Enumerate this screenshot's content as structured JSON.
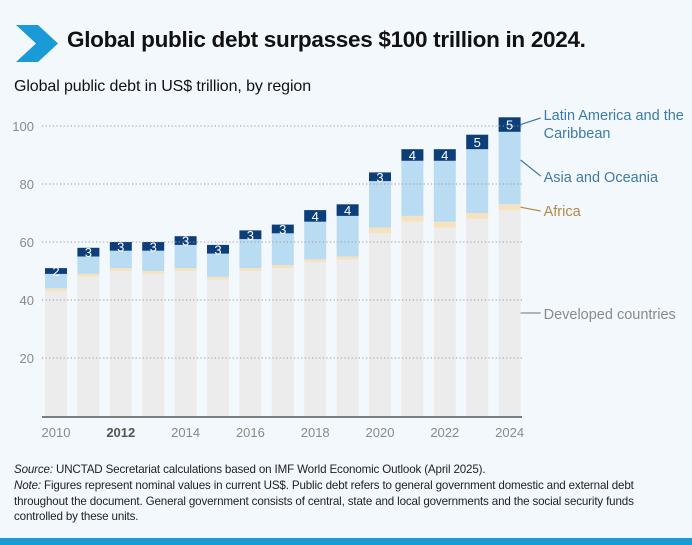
{
  "header": {
    "title": "Global public debt surpasses $100 trillion in 2024.",
    "subtitle": "Global public debt in US$ trillion, by region",
    "accent_color": "#1a9ad6"
  },
  "chart_data": {
    "type": "bar",
    "stacked": true,
    "title": "Global public debt in US$ trillion, by region",
    "xlabel": "",
    "ylabel": "US$ trillion",
    "ylim": [
      0,
      105
    ],
    "yticks": [
      20,
      40,
      60,
      80,
      100
    ],
    "grid": true,
    "legend_position": "right (direct labels)",
    "categories": [
      "2010",
      "2011",
      "2012",
      "2013",
      "2014",
      "2015",
      "2016",
      "2017",
      "2018",
      "2019",
      "2020",
      "2021",
      "2022",
      "2023",
      "2024"
    ],
    "xtick_labels": [
      "2010",
      "2012",
      "2014",
      "2016",
      "2018",
      "2020",
      "2022",
      "2024"
    ],
    "highlighted_xtick": "2012",
    "series": [
      {
        "name": "Developed countries",
        "color": "#ececec",
        "label_color": "#8a8a8a",
        "values": [
          43,
          48,
          50,
          49,
          50,
          47,
          50,
          51,
          53,
          54,
          63,
          67,
          65,
          68,
          71
        ]
      },
      {
        "name": "Africa",
        "color": "#f7e2c0",
        "label_color": "#b08a4a",
        "values": [
          1,
          1,
          1,
          1,
          1,
          1,
          1,
          1,
          1,
          1,
          2,
          2,
          2,
          2,
          2
        ]
      },
      {
        "name": "Asia and Oceania",
        "color": "#b9dcf2",
        "label_color": "#3d7ba6",
        "values": [
          5,
          6,
          6,
          7,
          8,
          8,
          10,
          11,
          13,
          14,
          16,
          19,
          21,
          22,
          25
        ]
      },
      {
        "name": "Latin America and the Caribbean",
        "color": "#0c3f7a",
        "label_color": "#3d7ba6",
        "values": [
          2,
          3,
          3,
          3,
          3,
          3,
          3,
          3,
          4,
          4,
          3,
          4,
          4,
          5,
          5
        ],
        "data_labels": [
          "2",
          "3",
          "3",
          "3",
          "3",
          "3",
          "3",
          "3",
          "4",
          "4",
          "3",
          "4",
          "4",
          "5",
          "5"
        ]
      }
    ],
    "legend": [
      {
        "name": "Latin America and the Caribbean",
        "lines": [
          "Latin America and the",
          "Caribbean"
        ]
      },
      {
        "name": "Asia and Oceania",
        "lines": [
          "Asia and Oceania"
        ]
      },
      {
        "name": "Africa",
        "lines": [
          "Africa"
        ]
      },
      {
        "name": "Developed countries",
        "lines": [
          "Developed countries"
        ]
      }
    ]
  },
  "footer": {
    "source_label": "Source:",
    "source_text": " UNCTAD Secretariat calculations based on IMF World Economic Outlook (April 2025).",
    "note_label": "Note:",
    "note_text": " Figures represent nominal values in current US$. Public debt refers to general government domestic and external debt throughout the document. General government consists of central, state and local governments and the social security funds controlled by these units."
  }
}
